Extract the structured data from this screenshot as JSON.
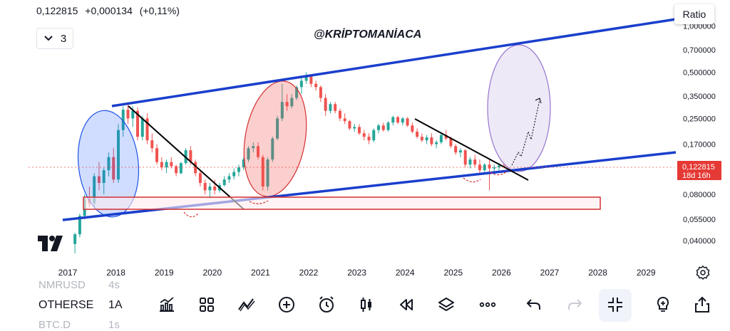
{
  "header": {
    "price": "0,122815",
    "change": "+0,000134",
    "change_pct": "(+0,11%)",
    "interval_count": "3",
    "ratio_label": "Ratio",
    "watermark": "@KRİPTOMANİACA"
  },
  "current_price": {
    "value": "0,122815",
    "countdown": "18d 16h"
  },
  "price_axis": {
    "labels": [
      "1,000000",
      "0,700000",
      "0,500000",
      "0,350000",
      "0,250000",
      "0,170000",
      "0,080000",
      "0,055000",
      "0,040000"
    ],
    "scale": "log"
  },
  "time_axis": {
    "labels": [
      "2017",
      "2018",
      "2019",
      "2020",
      "2021",
      "2022",
      "2023",
      "2024",
      "2025",
      "2026",
      "2027",
      "2028",
      "2029"
    ]
  },
  "colors": {
    "up": "#26a69a",
    "down": "#ef5350",
    "channel": "#1a3fcc",
    "trendline": "#000000",
    "support_box": "#d32f2f",
    "price_badge": "#e53935"
  },
  "watchlist": [
    {
      "symbol": "NMRUSD",
      "interval": "4s",
      "faded": true
    },
    {
      "symbol": "OTHERSE",
      "interval": "1A",
      "faded": false
    },
    {
      "symbol": "BTC.D",
      "interval": "1s",
      "faded": true
    }
  ],
  "toolbar_icons": [
    "indicators-icon",
    "layouts-icon",
    "drawings-icon",
    "add-icon",
    "alert-icon",
    "chart-type-icon",
    "replay-icon",
    "layers-icon",
    "more-icon",
    "undo-icon",
    "redo-icon",
    "collapse-icon",
    "idea-icon",
    "share-icon"
  ],
  "chart_data": {
    "type": "candlestick",
    "title": "",
    "xlabel": "",
    "ylabel": "",
    "x_range": [
      2016.6,
      2029.6
    ],
    "ylim": [
      0.03,
      1.05
    ],
    "y_scale": "log",
    "series": [
      {
        "values": [
          [
            2017.15,
            0.038,
            0.045,
            0.033,
            0.044
          ],
          [
            2017.25,
            0.044,
            0.06,
            0.042,
            0.058
          ],
          [
            2017.35,
            0.058,
            0.08,
            0.055,
            0.075
          ],
          [
            2017.45,
            0.075,
            0.09,
            0.066,
            0.07
          ],
          [
            2017.55,
            0.07,
            0.11,
            0.065,
            0.105
          ],
          [
            2017.65,
            0.105,
            0.13,
            0.085,
            0.095
          ],
          [
            2017.75,
            0.095,
            0.12,
            0.08,
            0.115
          ],
          [
            2017.85,
            0.115,
            0.15,
            0.105,
            0.14
          ],
          [
            2017.95,
            0.14,
            0.16,
            0.095,
            0.1
          ],
          [
            2018.05,
            0.1,
            0.23,
            0.095,
            0.21
          ],
          [
            2018.15,
            0.21,
            0.3,
            0.19,
            0.285
          ],
          [
            2018.25,
            0.285,
            0.31,
            0.23,
            0.25
          ],
          [
            2018.35,
            0.25,
            0.3,
            0.22,
            0.28
          ],
          [
            2018.45,
            0.28,
            0.295,
            0.18,
            0.19
          ],
          [
            2018.55,
            0.19,
            0.26,
            0.18,
            0.25
          ],
          [
            2018.65,
            0.25,
            0.27,
            0.17,
            0.18
          ],
          [
            2018.75,
            0.18,
            0.2,
            0.15,
            0.16
          ],
          [
            2018.85,
            0.16,
            0.17,
            0.125,
            0.13
          ],
          [
            2018.95,
            0.13,
            0.14,
            0.115,
            0.12
          ],
          [
            2019.05,
            0.12,
            0.135,
            0.11,
            0.13
          ],
          [
            2019.15,
            0.13,
            0.14,
            0.118,
            0.122
          ],
          [
            2019.25,
            0.122,
            0.125,
            0.105,
            0.11
          ],
          [
            2019.35,
            0.11,
            0.13,
            0.108,
            0.128
          ],
          [
            2019.45,
            0.128,
            0.16,
            0.125,
            0.155
          ],
          [
            2019.55,
            0.155,
            0.165,
            0.125,
            0.13
          ],
          [
            2019.65,
            0.13,
            0.135,
            0.105,
            0.11
          ],
          [
            2019.75,
            0.11,
            0.115,
            0.09,
            0.095
          ],
          [
            2019.85,
            0.095,
            0.1,
            0.08,
            0.085
          ],
          [
            2019.95,
            0.085,
            0.095,
            0.075,
            0.09
          ],
          [
            2020.05,
            0.09,
            0.1,
            0.08,
            0.085
          ],
          [
            2020.15,
            0.085,
            0.095,
            0.082,
            0.092
          ],
          [
            2020.25,
            0.092,
            0.105,
            0.09,
            0.1
          ],
          [
            2020.35,
            0.1,
            0.11,
            0.095,
            0.105
          ],
          [
            2020.45,
            0.105,
            0.118,
            0.1,
            0.112
          ],
          [
            2020.55,
            0.112,
            0.125,
            0.105,
            0.12
          ],
          [
            2020.65,
            0.12,
            0.14,
            0.115,
            0.135
          ],
          [
            2020.75,
            0.135,
            0.165,
            0.13,
            0.16
          ],
          [
            2020.85,
            0.16,
            0.175,
            0.15,
            0.165
          ],
          [
            2020.95,
            0.165,
            0.175,
            0.135,
            0.14
          ],
          [
            2021.05,
            0.14,
            0.145,
            0.085,
            0.09
          ],
          [
            2021.15,
            0.09,
            0.14,
            0.085,
            0.135
          ],
          [
            2021.25,
            0.135,
            0.19,
            0.13,
            0.185
          ],
          [
            2021.35,
            0.185,
            0.26,
            0.18,
            0.25
          ],
          [
            2021.45,
            0.25,
            0.42,
            0.24,
            0.32
          ],
          [
            2021.55,
            0.32,
            0.36,
            0.28,
            0.3
          ],
          [
            2021.65,
            0.3,
            0.36,
            0.29,
            0.34
          ],
          [
            2021.75,
            0.34,
            0.41,
            0.33,
            0.4
          ],
          [
            2021.85,
            0.4,
            0.46,
            0.36,
            0.44
          ],
          [
            2021.95,
            0.44,
            0.5,
            0.42,
            0.47
          ],
          [
            2022.05,
            0.47,
            0.48,
            0.4,
            0.42
          ],
          [
            2022.15,
            0.42,
            0.44,
            0.38,
            0.4
          ],
          [
            2022.25,
            0.4,
            0.41,
            0.32,
            0.34
          ],
          [
            2022.35,
            0.34,
            0.36,
            0.26,
            0.28
          ],
          [
            2022.45,
            0.28,
            0.32,
            0.27,
            0.31
          ],
          [
            2022.55,
            0.31,
            0.32,
            0.27,
            0.28
          ],
          [
            2022.65,
            0.28,
            0.29,
            0.24,
            0.25
          ],
          [
            2022.75,
            0.25,
            0.27,
            0.23,
            0.24
          ],
          [
            2022.85,
            0.24,
            0.245,
            0.21,
            0.215
          ],
          [
            2022.95,
            0.215,
            0.23,
            0.205,
            0.22
          ],
          [
            2023.05,
            0.22,
            0.23,
            0.195,
            0.2
          ],
          [
            2023.15,
            0.2,
            0.21,
            0.18,
            0.19
          ],
          [
            2023.25,
            0.19,
            0.2,
            0.17,
            0.18
          ],
          [
            2023.35,
            0.18,
            0.215,
            0.175,
            0.21
          ],
          [
            2023.45,
            0.21,
            0.23,
            0.2,
            0.225
          ],
          [
            2023.55,
            0.225,
            0.235,
            0.205,
            0.21
          ],
          [
            2023.65,
            0.21,
            0.24,
            0.205,
            0.235
          ],
          [
            2023.75,
            0.235,
            0.26,
            0.225,
            0.255
          ],
          [
            2023.85,
            0.255,
            0.26,
            0.23,
            0.235
          ],
          [
            2023.95,
            0.235,
            0.255,
            0.225,
            0.25
          ],
          [
            2024.05,
            0.25,
            0.255,
            0.22,
            0.225
          ],
          [
            2024.15,
            0.225,
            0.235,
            0.2,
            0.205
          ],
          [
            2024.25,
            0.205,
            0.215,
            0.185,
            0.19
          ],
          [
            2024.35,
            0.19,
            0.2,
            0.175,
            0.18
          ],
          [
            2024.45,
            0.18,
            0.195,
            0.17,
            0.188
          ],
          [
            2024.55,
            0.188,
            0.2,
            0.165,
            0.17
          ],
          [
            2024.65,
            0.17,
            0.18,
            0.16,
            0.175
          ],
          [
            2024.75,
            0.175,
            0.2,
            0.17,
            0.195
          ],
          [
            2024.85,
            0.195,
            0.21,
            0.18,
            0.185
          ],
          [
            2024.95,
            0.185,
            0.19,
            0.16,
            0.165
          ],
          [
            2025.05,
            0.165,
            0.17,
            0.145,
            0.15
          ],
          [
            2025.15,
            0.15,
            0.16,
            0.14,
            0.155
          ],
          [
            2025.25,
            0.155,
            0.158,
            0.12,
            0.125
          ],
          [
            2025.35,
            0.125,
            0.14,
            0.118,
            0.135
          ],
          [
            2025.45,
            0.135,
            0.145,
            0.12,
            0.125
          ],
          [
            2025.55,
            0.125,
            0.135,
            0.11,
            0.115
          ],
          [
            2025.65,
            0.115,
            0.128,
            0.112,
            0.125
          ],
          [
            2025.75,
            0.125,
            0.135,
            0.085,
            0.118
          ],
          [
            2025.85,
            0.118,
            0.125,
            0.112,
            0.12
          ],
          [
            2025.95,
            0.12,
            0.128,
            0.115,
            0.123
          ],
          [
            2026.05,
            0.123,
            0.128,
            0.12,
            0.1228
          ]
        ]
      }
    ]
  }
}
